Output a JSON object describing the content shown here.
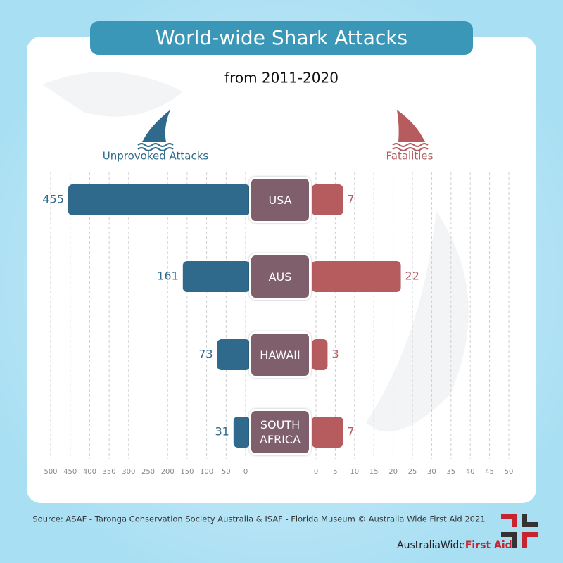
{
  "chart_data": {
    "type": "butterfly",
    "title": "World-wide Shark Attacks",
    "subtitle": "from  2011-2020",
    "categories": [
      "USA",
      "AUS",
      "HAWAII",
      "SOUTH AFRICA"
    ],
    "series": [
      {
        "name": "Unprovoked Attacks",
        "color": "#2f6a8d",
        "values": [
          455,
          161,
          73,
          31
        ]
      },
      {
        "name": "Fatalities",
        "color": "#b65c5f",
        "values": [
          7,
          22,
          3,
          7
        ],
        "axis": "y2"
      }
    ],
    "ylim": [
      0,
      500
    ],
    "yticks": [
      0,
      50,
      100,
      150,
      200,
      250,
      300,
      350,
      400,
      450,
      500
    ],
    "y2lim": [
      0,
      50
    ],
    "y2ticks": [
      0,
      5,
      10,
      15,
      20,
      25,
      30,
      35,
      40,
      45,
      50
    ],
    "grid": true
  },
  "footer": {
    "source": "Source: ASAF - Taronga Conservation Society Australia & ISAF - Florida Museum © Australia Wide First Aid 2021",
    "brand": "AustraliaWide",
    "brand_accent": "First Aid"
  }
}
